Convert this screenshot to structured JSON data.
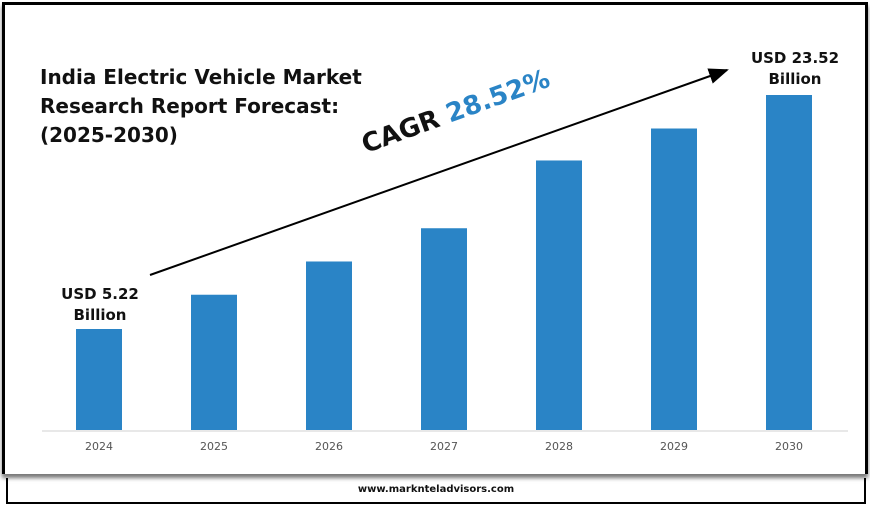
{
  "chart_data": {
    "type": "bar",
    "title": "India Electric Vehicle Market Research Report Forecast: (2025-2030)",
    "title_lines": [
      "India Electric Vehicle Market",
      "Research Report Forecast:",
      "(2025-2030)"
    ],
    "categories": [
      "2024",
      "2025",
      "2026",
      "2027",
      "2028",
      "2029",
      "2030"
    ],
    "values": [
      5.22,
      7.9,
      10.5,
      13.1,
      18.4,
      20.9,
      23.52
    ],
    "bar_color": "#2a84c6",
    "grid": false,
    "annotations": {
      "start_label": [
        "USD 5.22",
        "Billion"
      ],
      "end_label": [
        "USD 23.52",
        "Billion"
      ],
      "cagr_prefix": "CAGR",
      "cagr_value": "28.52%",
      "cagr_color": "#2a84c6"
    }
  },
  "footer": {
    "url": "www.marknteladvisors.com"
  }
}
